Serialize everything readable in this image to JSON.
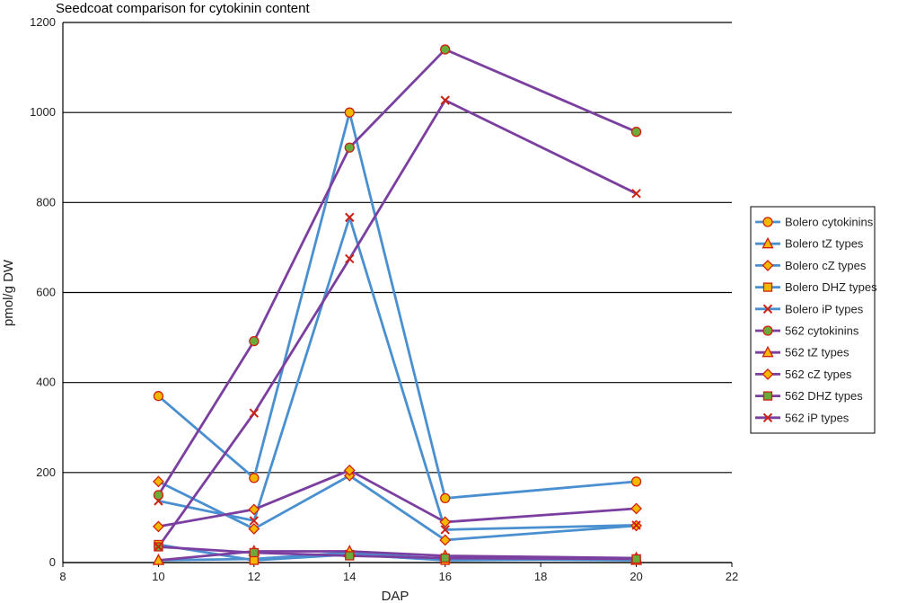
{
  "chart_data": {
    "type": "line",
    "title": "Seedcoat comparison for cytokinin content",
    "xlabel": "DAP",
    "ylabel": "pmol/g DW",
    "xlim": [
      8,
      22
    ],
    "ylim": [
      0,
      1200
    ],
    "xticks": [
      8,
      10,
      12,
      14,
      16,
      18,
      20,
      22
    ],
    "yticks": [
      0,
      200,
      400,
      600,
      800,
      1000,
      1200
    ],
    "grid": "horizontal",
    "legend_position": "right",
    "colors": {
      "bolero_line": "#4a90d0",
      "line_562": "#7b3fa0",
      "marker_fill_orange": "#f5b800",
      "marker_fill_green": "#6aab3a",
      "marker_edge": "#d02010"
    },
    "x": [
      10,
      12,
      14,
      16,
      20
    ],
    "series": [
      {
        "name": "Bolero cytokinins",
        "group": "bolero",
        "marker": "circle",
        "values": [
          370,
          188,
          1000,
          143,
          180
        ]
      },
      {
        "name": "Bolero tZ types",
        "group": "bolero",
        "marker": "triangle",
        "values": [
          5,
          8,
          22,
          8,
          5
        ]
      },
      {
        "name": "Bolero cZ types",
        "group": "bolero",
        "marker": "diamond",
        "values": [
          180,
          75,
          193,
          50,
          82
        ]
      },
      {
        "name": "Bolero DHZ types",
        "group": "bolero",
        "marker": "square",
        "values": [
          40,
          5,
          18,
          5,
          8
        ]
      },
      {
        "name": "Bolero iP types",
        "group": "bolero",
        "marker": "x",
        "values": [
          137,
          93,
          767,
          73,
          83
        ]
      },
      {
        "name": "562 cytokinins",
        "group": "562",
        "marker": "circle",
        "values": [
          150,
          492,
          922,
          1140,
          957
        ]
      },
      {
        "name": "562 tZ types",
        "group": "562",
        "marker": "triangle",
        "values": [
          5,
          25,
          25,
          15,
          10
        ]
      },
      {
        "name": "562 cZ types",
        "group": "562",
        "marker": "diamond",
        "values": [
          80,
          118,
          205,
          90,
          120
        ]
      },
      {
        "name": "562 DHZ types",
        "group": "562",
        "marker": "square",
        "values": [
          35,
          22,
          15,
          10,
          8
        ]
      },
      {
        "name": "562 iP types",
        "group": "562",
        "marker": "x",
        "values": [
          35,
          332,
          675,
          1027,
          820
        ]
      }
    ]
  }
}
